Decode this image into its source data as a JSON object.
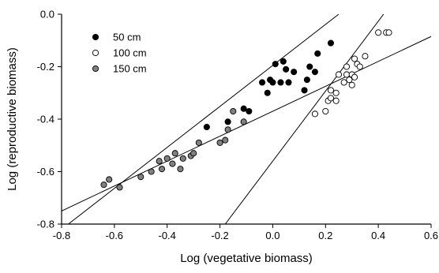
{
  "chart_data": {
    "type": "scatter",
    "xlabel": "Log (vegetative biomass)",
    "ylabel": "Log (reproductive biomass)",
    "xlim": [
      -0.8,
      0.6
    ],
    "ylim": [
      -0.8,
      0.0
    ],
    "xticks": [
      "-0.8",
      "-0.6",
      "-0.4",
      "-0.2",
      "0.0",
      "0.2",
      "0.4",
      "0.6"
    ],
    "yticks": [
      "0.0",
      "-0.2",
      "-0.4",
      "-0.6",
      "-0.8"
    ],
    "grid": false,
    "legend_position": "top-left",
    "series": [
      {
        "name": "50 cm",
        "marker": "filled",
        "color": "#000000",
        "points": [
          [
            -0.25,
            -0.43
          ],
          [
            -0.17,
            -0.41
          ],
          [
            -0.11,
            -0.36
          ],
          [
            -0.09,
            -0.37
          ],
          [
            -0.04,
            -0.26
          ],
          [
            -0.02,
            -0.3
          ],
          [
            -0.01,
            -0.25
          ],
          [
            0.0,
            -0.26
          ],
          [
            0.01,
            -0.19
          ],
          [
            0.03,
            -0.26
          ],
          [
            0.04,
            -0.18
          ],
          [
            0.05,
            -0.21
          ],
          [
            0.06,
            -0.26
          ],
          [
            0.08,
            -0.22
          ],
          [
            0.12,
            -0.29
          ],
          [
            0.13,
            -0.25
          ],
          [
            0.14,
            -0.2
          ],
          [
            0.16,
            -0.22
          ],
          [
            0.17,
            -0.15
          ],
          [
            0.22,
            -0.11
          ]
        ]
      },
      {
        "name": "100 cm",
        "marker": "open",
        "color": "#ffffff",
        "points": [
          [
            0.16,
            -0.38
          ],
          [
            0.2,
            -0.37
          ],
          [
            0.21,
            -0.33
          ],
          [
            0.22,
            -0.29
          ],
          [
            0.22,
            -0.32
          ],
          [
            0.24,
            -0.3
          ],
          [
            0.24,
            -0.33
          ],
          [
            0.25,
            -0.23
          ],
          [
            0.27,
            -0.26
          ],
          [
            0.28,
            -0.23
          ],
          [
            0.28,
            -0.2
          ],
          [
            0.29,
            -0.25
          ],
          [
            0.3,
            -0.27
          ],
          [
            0.3,
            -0.23
          ],
          [
            0.31,
            -0.24
          ],
          [
            0.31,
            -0.17
          ],
          [
            0.32,
            -0.19
          ],
          [
            0.33,
            -0.2
          ],
          [
            0.35,
            -0.16
          ],
          [
            0.4,
            -0.07
          ],
          [
            0.43,
            -0.07
          ],
          [
            0.44,
            -0.07
          ]
        ]
      },
      {
        "name": "150 cm",
        "marker": "filled",
        "color": "#808080",
        "points": [
          [
            -0.64,
            -0.65
          ],
          [
            -0.62,
            -0.63
          ],
          [
            -0.58,
            -0.66
          ],
          [
            -0.5,
            -0.62
          ],
          [
            -0.46,
            -0.6
          ],
          [
            -0.43,
            -0.56
          ],
          [
            -0.42,
            -0.59
          ],
          [
            -0.4,
            -0.55
          ],
          [
            -0.38,
            -0.57
          ],
          [
            -0.37,
            -0.53
          ],
          [
            -0.35,
            -0.59
          ],
          [
            -0.34,
            -0.55
          ],
          [
            -0.31,
            -0.54
          ],
          [
            -0.3,
            -0.53
          ],
          [
            -0.28,
            -0.49
          ],
          [
            -0.2,
            -0.49
          ],
          [
            -0.18,
            -0.48
          ],
          [
            -0.17,
            -0.44
          ],
          [
            -0.15,
            -0.37
          ],
          [
            -0.11,
            -0.41
          ]
        ]
      }
    ],
    "fit_lines": [
      {
        "series": "50 cm",
        "x": [
          -0.8,
          0.25
        ],
        "y": [
          -0.82,
          0.0
        ]
      },
      {
        "series": "100 cm",
        "x": [
          -0.18,
          0.42
        ],
        "y": [
          -0.8,
          0.0
        ]
      },
      {
        "series": "150 cm",
        "x": [
          -0.8,
          0.6
        ],
        "y": [
          -0.75,
          -0.085
        ]
      }
    ]
  }
}
